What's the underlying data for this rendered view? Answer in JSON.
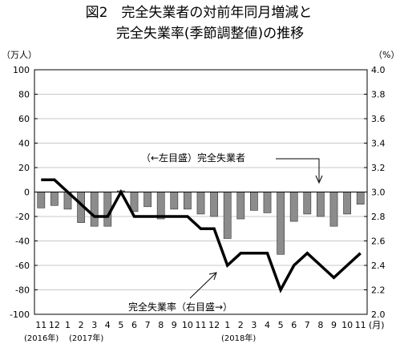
{
  "chart_data": {
    "type": "bar+line",
    "title_line1": "図2　完全失業者の対前年同月増減と",
    "title_line2": "完全失業率(季節調整値)の推移",
    "left_unit": "（万人）",
    "right_unit": "（%）",
    "left_axis": {
      "min": -100,
      "max": 100,
      "ticks": [
        100,
        80,
        60,
        40,
        20,
        0,
        -20,
        -40,
        -60,
        -80,
        -100
      ]
    },
    "right_axis": {
      "min": 2.0,
      "max": 4.0,
      "ticks": [
        "4.0",
        "3.8",
        "3.6",
        "3.4",
        "3.2",
        "3.0",
        "2.8",
        "2.6",
        "2.4",
        "2.2",
        "2.0"
      ]
    },
    "months": [
      "11",
      "12",
      "1",
      "2",
      "3",
      "4",
      "5",
      "6",
      "7",
      "8",
      "9",
      "10",
      "11",
      "12",
      "1",
      "2",
      "3",
      "4",
      "5",
      "6",
      "7",
      "8",
      "9",
      "10",
      "11"
    ],
    "month_suffix": "(月)",
    "year_labels": [
      "(2016年)",
      "(2017年)",
      "(2018年)"
    ],
    "series": [
      {
        "name": "完全失業者",
        "axis": "left",
        "kind": "bar",
        "color": "#8c8c8c",
        "values": [
          -13,
          -11,
          -14,
          -25,
          -28,
          -28,
          1,
          -16,
          -12,
          -22,
          -14,
          -14,
          -18,
          -20,
          -38,
          -22,
          -15,
          -17,
          -51,
          -24,
          -18,
          -20,
          -28,
          -18,
          -10
        ]
      },
      {
        "name": "完全失業率",
        "axis": "right",
        "kind": "line",
        "color": "#000000",
        "values": [
          3.1,
          3.1,
          3.0,
          2.9,
          2.8,
          2.8,
          3.0,
          2.8,
          2.8,
          2.8,
          2.8,
          2.8,
          2.7,
          2.7,
          2.4,
          2.5,
          2.5,
          2.5,
          2.2,
          2.4,
          2.5,
          2.4,
          2.3,
          2.4,
          2.5
        ]
      }
    ],
    "annotations": {
      "bar_label": "（←左目盛）完全失業者",
      "line_label": "完全失業率（右目盛→）"
    }
  }
}
